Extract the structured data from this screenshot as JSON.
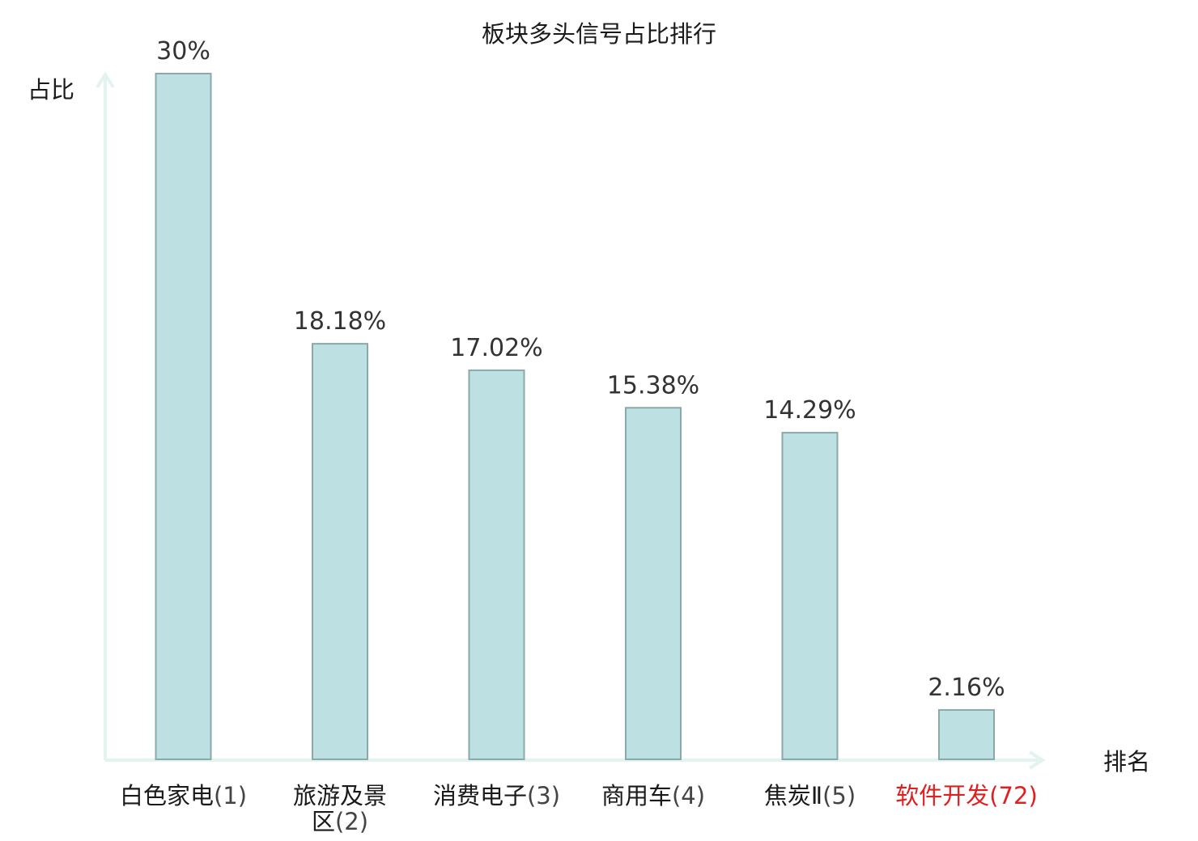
{
  "chart_data": {
    "type": "bar",
    "title": "板块多头信号占比排行",
    "ylabel": "占比",
    "xlabel": "排名",
    "categories": [
      {
        "name": "白色家电",
        "rank": "(1)",
        "highlight": false
      },
      {
        "name": "旅游及景区",
        "rank": "(2)",
        "highlight": false
      },
      {
        "name": "消费电子",
        "rank": "(3)",
        "highlight": false
      },
      {
        "name": "商用车",
        "rank": "(4)",
        "highlight": false
      },
      {
        "name": "焦炭Ⅱ",
        "rank": "(5)",
        "highlight": false
      },
      {
        "name": "软件开发",
        "rank": "(72)",
        "highlight": true
      }
    ],
    "values": [
      30,
      18.18,
      17.02,
      15.38,
      14.29,
      2.16
    ],
    "value_labels": [
      "30%",
      "18.18%",
      "17.02%",
      "15.38%",
      "14.29%",
      "2.16%"
    ],
    "ylim": [
      0,
      30
    ],
    "grid": false,
    "bar_color": "#bde0e2",
    "bar_edge_color": "#8aa9a9",
    "axis_color": "#e3f3ef",
    "highlight_color": "#e02020"
  }
}
